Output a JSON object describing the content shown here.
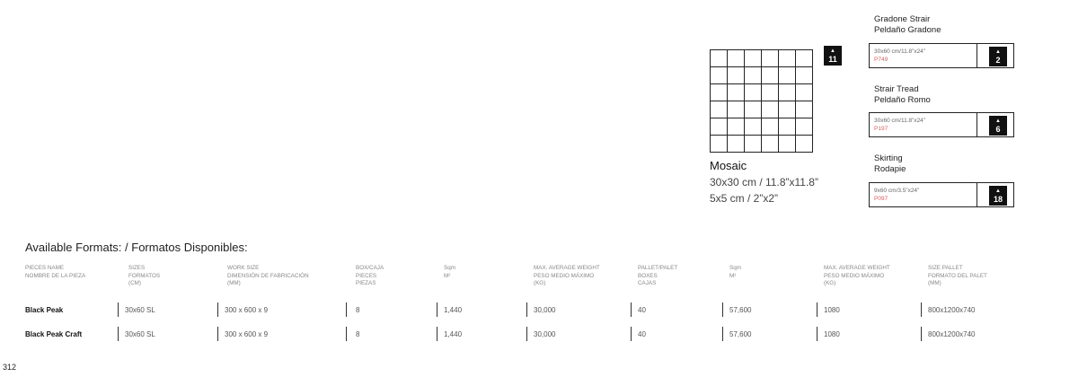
{
  "mosaic": {
    "badge": "11",
    "title": "Mosaic",
    "size_cm_in": "30x30 cm / 11.8”x11.8”",
    "chip_size": "5x5 cm / 2”x2”"
  },
  "pieces": [
    {
      "name_en": "Gradone Strair",
      "name_es": "Peldaño Gradone",
      "size": "30x60 cm/11.8”x24”",
      "code": "P749",
      "badge": "2"
    },
    {
      "name_en": "Strair Tread",
      "name_es": "Peldaño Romo",
      "size": "30x60 cm/11.8”x24”",
      "code": "P197",
      "badge": "6"
    },
    {
      "name_en": "Skirting",
      "name_es": "Rodapie",
      "size": "9x60 cm/3.5”x24”",
      "code": "P097",
      "badge": "18"
    }
  ],
  "formats": {
    "title": "Available Formats: / Formatos Disponibles:",
    "headers": [
      {
        "l1": "PIECES NAME",
        "l2": "NOMBRE DE LA PIEZA",
        "l3": ""
      },
      {
        "l1": "SIZES",
        "l2": "FORMATOS",
        "l3": "(Cm)"
      },
      {
        "l1": "WORK SIZE",
        "l2": "DIMENSIÓN DE FABRICACIÓN",
        "l3": "(Mm)"
      },
      {
        "l1": "BOX/CAJA",
        "l2": "PIECES",
        "l3": "PIEZAS"
      },
      {
        "l1": "Sqm",
        "l2": "M²",
        "l3": ""
      },
      {
        "l1": "MAX. AVERAGE WEIGHT",
        "l2": "PESO MEDIO MÁXIMO",
        "l3": "(Kg)"
      },
      {
        "l1": "PALLET/PALET",
        "l2": "BOXES",
        "l3": "CAJAS"
      },
      {
        "l1": "Sqm",
        "l2": "M²",
        "l3": ""
      },
      {
        "l1": "MAX. AVERAGE WEIGHT",
        "l2": "PESO MEDIO MÁXIMO",
        "l3": "(Kg)"
      },
      {
        "l1": "SIZE PALLET",
        "l2": "FORMATO DEL PALET",
        "l3": "(Mm)"
      }
    ],
    "rows": [
      [
        "Black Peak",
        "30x60 SL",
        "300 x 600 x 9",
        "8",
        "1,440",
        "30,000",
        "40",
        "57,600",
        "1080",
        "800x1200x740"
      ],
      [
        "Black Peak Craft",
        "30x60 SL",
        "300 x 600 x 9",
        "8",
        "1,440",
        "30,000",
        "40",
        "57,600",
        "1080",
        "800x1200x740"
      ]
    ]
  },
  "page_number": "312"
}
